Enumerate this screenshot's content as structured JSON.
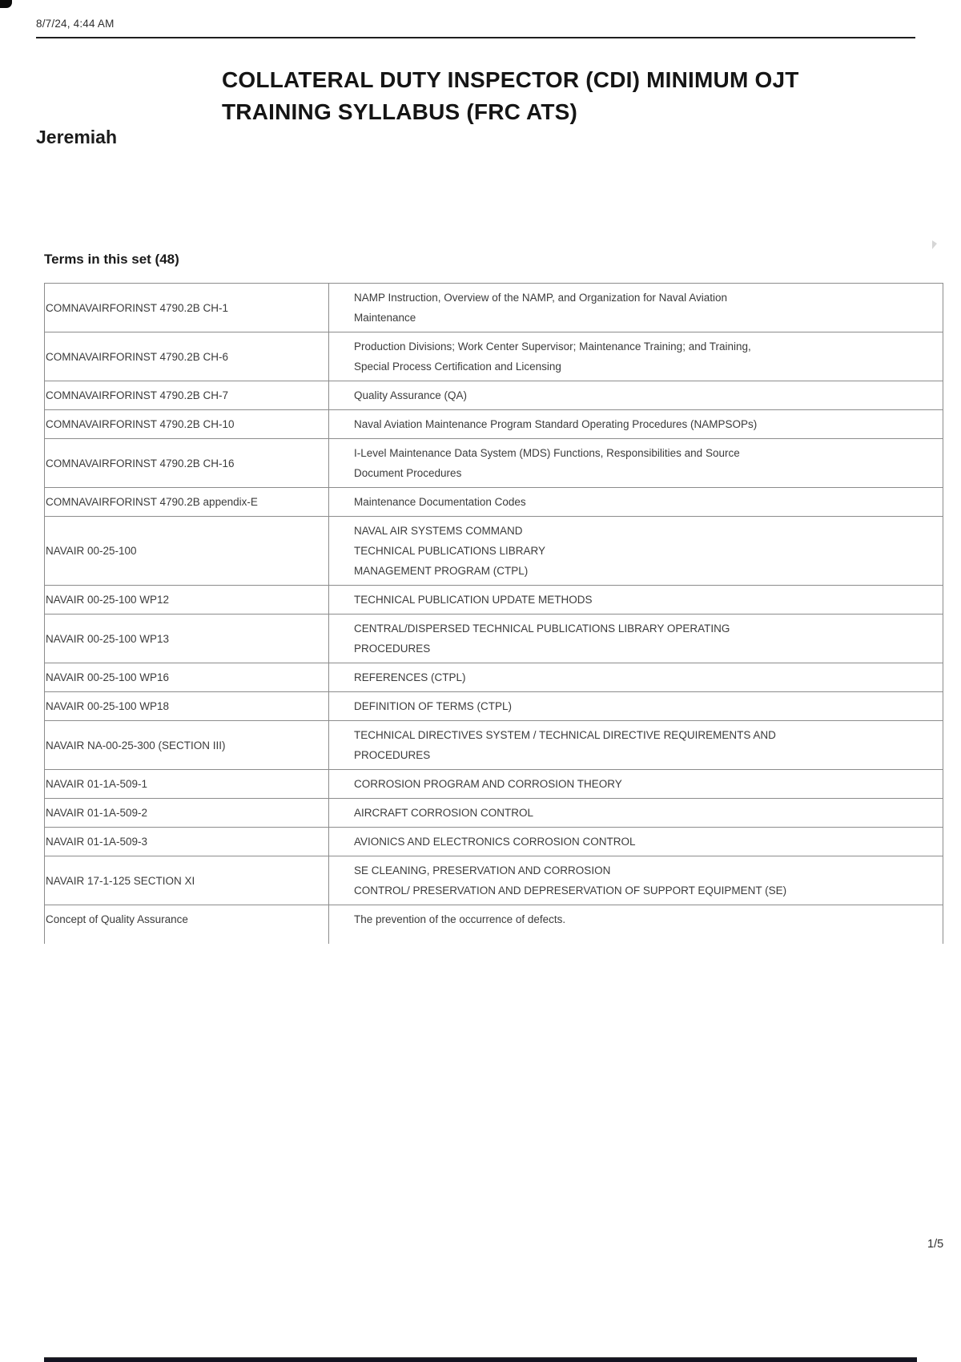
{
  "page": {
    "print_datetime": "8/7/24, 4:44 AM",
    "title": "COLLATERAL DUTY INSPECTOR (CDI) MINIMUM OJT\nTRAINING SYLLABUS (FRC ATS)",
    "author": "Jeremiah",
    "terms_heading": "Terms in this set (48)",
    "page_indicator": "1/5"
  },
  "colors": {
    "heading_text": "#151515",
    "body_text": "#3b3b3b",
    "table_border": "#8c8c8c",
    "header_rule": "#1f1f1f",
    "bottom_bar": "#131320"
  },
  "terms_table": {
    "rows": [
      {
        "term": "COMNAVAIRFORINST 4790.2B CH-1",
        "definition": "NAMP Instruction, Overview of the NAMP, and Organization for Naval Aviation\nMaintenance"
      },
      {
        "term": "COMNAVAIRFORINST 4790.2B CH-6",
        "definition": "Production Divisions; Work Center Supervisor; Maintenance Training; and Training,\nSpecial Process Certification and Licensing"
      },
      {
        "term": "COMNAVAIRFORINST 4790.2B CH-7",
        "definition": "Quality Assurance (QA)"
      },
      {
        "term": "COMNAVAIRFORINST 4790.2B CH-10",
        "definition": "Naval Aviation Maintenance Program Standard Operating Procedures (NAMPSOPs)"
      },
      {
        "term": "COMNAVAIRFORINST 4790.2B CH-16",
        "definition": "I-Level Maintenance Data System (MDS) Functions, Responsibilities and Source\nDocument Procedures"
      },
      {
        "term": "COMNAVAIRFORINST 4790.2B appendix-E",
        "definition": "Maintenance Documentation Codes"
      },
      {
        "term": "NAVAIR 00-25-100",
        "definition": "NAVAL AIR SYSTEMS COMMAND\nTECHNICAL PUBLICATIONS LIBRARY\nMANAGEMENT PROGRAM (CTPL)"
      },
      {
        "term": "NAVAIR 00-25-100 WP12",
        "definition": "TECHNICAL PUBLICATION UPDATE METHODS"
      },
      {
        "term": "NAVAIR 00-25-100 WP13",
        "definition": "CENTRAL/DISPERSED TECHNICAL PUBLICATIONS LIBRARY OPERATING\nPROCEDURES"
      },
      {
        "term": "NAVAIR 00-25-100 WP16",
        "definition": "REFERENCES (CTPL)"
      },
      {
        "term": "NAVAIR 00-25-100 WP18",
        "definition": "DEFINITION OF TERMS (CTPL)"
      },
      {
        "term": "NAVAIR NA-00-25-300 (SECTION III)",
        "definition": "TECHNICAL DIRECTIVES SYSTEM / TECHNICAL DIRECTIVE REQUIREMENTS AND\nPROCEDURES"
      },
      {
        "term": "NAVAIR 01-1A-509-1",
        "definition": "CORROSION PROGRAM AND CORROSION THEORY"
      },
      {
        "term": "NAVAIR 01-1A-509-2",
        "definition": "AIRCRAFT CORROSION CONTROL"
      },
      {
        "term": "NAVAIR 01-1A-509-3",
        "definition": "AVIONICS AND ELECTRONICS CORROSION CONTROL"
      },
      {
        "term": "NAVAIR 17-1-125 SECTION XI",
        "definition": "SE CLEANING, PRESERVATION AND CORROSION\nCONTROL/ PRESERVATION AND DEPRESERVATION OF SUPPORT EQUIPMENT (SE)"
      },
      {
        "term": "Concept of Quality Assurance",
        "definition": "The prevention of the occurrence of defects."
      }
    ]
  }
}
